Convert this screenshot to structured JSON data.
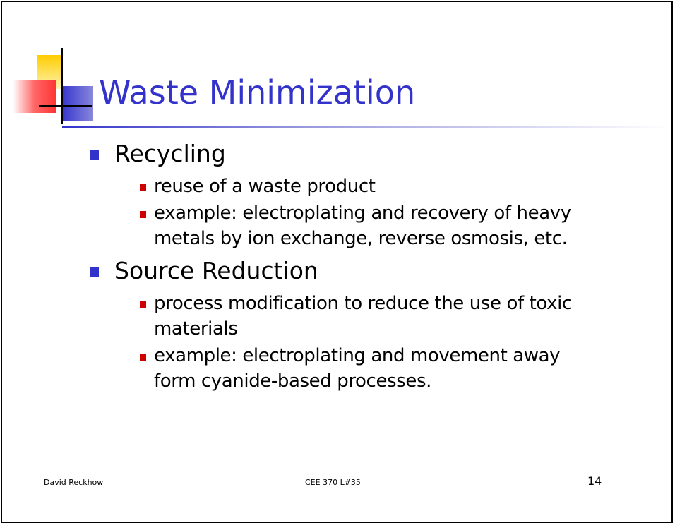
{
  "slide": {
    "title": "Waste Minimization",
    "bullets": [
      {
        "text": "Recycling",
        "sub": [
          "reuse of a waste product",
          "example: electroplating and recovery of heavy metals by ion exchange, reverse osmosis, etc."
        ]
      },
      {
        "text": "Source Reduction",
        "sub": [
          "process modification to reduce the use of toxic materials",
          "example: electroplating and movement away form cyanide-based processes."
        ]
      }
    ],
    "footer": {
      "author": "David Reckhow",
      "course": "CEE 370 L#35",
      "page": 14
    }
  }
}
